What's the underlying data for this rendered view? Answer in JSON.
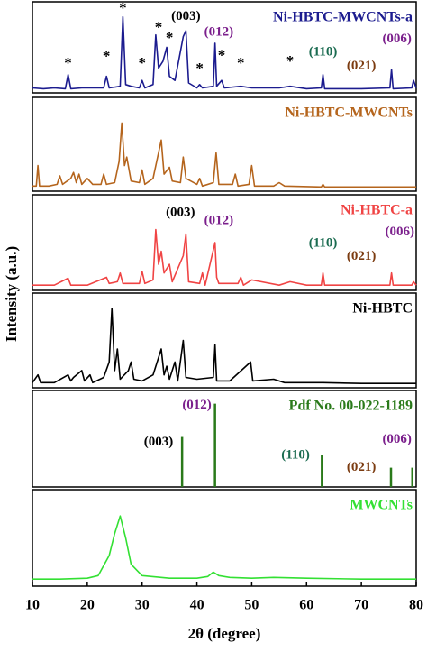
{
  "chart_data": [
    {
      "type": "line",
      "label": "Ni-HBTC-MWCNTs-a",
      "color": "#1c1c8f",
      "ylabel": "Intensity (a.u.)",
      "ylim": [
        0,
        110
      ],
      "x": [
        10,
        12,
        14,
        16,
        16.5,
        17,
        19,
        21,
        23,
        23.5,
        24,
        26,
        26.5,
        27,
        28,
        29.5,
        30,
        30.5,
        32,
        32.5,
        33,
        33.8,
        34.5,
        35,
        36,
        37.5,
        38,
        38.5,
        40,
        40.5,
        41,
        43,
        43.3,
        43.6,
        44.5,
        45,
        48,
        50,
        55,
        57,
        60,
        62.7,
        63,
        63.3,
        70,
        75.2,
        75.5,
        75.8,
        79.2,
        79.5,
        80
      ],
      "values": [
        6,
        5,
        6,
        5,
        22,
        5,
        6,
        6,
        6,
        20,
        6,
        8,
        92,
        10,
        8,
        6,
        15,
        6,
        10,
        70,
        30,
        38,
        55,
        20,
        15,
        68,
        75,
        12,
        6,
        10,
        6,
        8,
        60,
        8,
        15,
        6,
        8,
        6,
        6,
        8,
        5,
        6,
        22,
        5,
        5,
        6,
        28,
        5,
        6,
        15,
        6
      ],
      "annotations": [
        {
          "text": "*",
          "x": 16.5,
          "y": 35,
          "color": "#000000"
        },
        {
          "text": "*",
          "x": 23.5,
          "y": 43,
          "color": "#000000"
        },
        {
          "text": "*",
          "x": 26.5,
          "y": 101,
          "color": "#000000"
        },
        {
          "text": "*",
          "x": 30,
          "y": 35,
          "color": "#000000"
        },
        {
          "text": "*",
          "x": 33,
          "y": 78,
          "color": "#000000"
        },
        {
          "text": "*",
          "x": 35,
          "y": 65,
          "color": "#000000"
        },
        {
          "text": "*",
          "x": 40.5,
          "y": 28,
          "color": "#000000"
        },
        {
          "text": "*",
          "x": 44.5,
          "y": 44,
          "color": "#000000"
        },
        {
          "text": "*",
          "x": 48,
          "y": 35,
          "color": "#000000"
        },
        {
          "text": "*",
          "x": 57,
          "y": 37,
          "color": "#000000"
        },
        {
          "text": "(003)",
          "x": 38,
          "y": 92,
          "color": "#000000"
        },
        {
          "text": "(012)",
          "x": 44,
          "y": 73,
          "color": "#7b1f8c"
        },
        {
          "text": "(110)",
          "x": 63,
          "y": 49,
          "color": "#1a6b50"
        },
        {
          "text": "(021)",
          "x": 70,
          "y": 32,
          "color": "#7b3b10"
        },
        {
          "text": "(006)",
          "x": 76.5,
          "y": 65,
          "color": "#7b1f8c"
        }
      ]
    },
    {
      "type": "line",
      "label": "Ni-HBTC-MWCNTs",
      "color": "#b5651d",
      "ylim": [
        0,
        110
      ],
      "x": [
        10,
        10.7,
        11,
        11.3,
        13,
        14.5,
        15,
        15.5,
        17,
        17.5,
        18,
        18.5,
        19,
        20,
        21,
        22.5,
        23,
        23.5,
        25,
        25.8,
        26.3,
        26.8,
        27.2,
        28,
        29.5,
        30,
        30.5,
        32,
        33.5,
        34,
        35,
        35.5,
        37,
        37.5,
        38,
        40,
        40.5,
        41,
        43,
        43.5,
        44,
        46.5,
        47,
        47.5,
        49.5,
        50,
        50.5,
        54,
        55,
        56,
        62.7,
        63,
        63.3,
        70,
        80
      ],
      "values": [
        6,
        6,
        30,
        6,
        6,
        8,
        18,
        8,
        15,
        22,
        10,
        20,
        8,
        15,
        8,
        8,
        20,
        8,
        10,
        35,
        80,
        30,
        40,
        12,
        10,
        25,
        8,
        15,
        60,
        20,
        28,
        12,
        10,
        40,
        15,
        8,
        15,
        6,
        10,
        45,
        8,
        8,
        20,
        6,
        8,
        30,
        6,
        6,
        10,
        6,
        5,
        8,
        5,
        5,
        5
      ],
      "annotations": []
    },
    {
      "type": "line",
      "label": "Ni-HBTC-a",
      "color": "#f04444",
      "ylim": [
        0,
        110
      ],
      "x": [
        10,
        14,
        16.5,
        17,
        20,
        23.5,
        24,
        25.5,
        26,
        26.5,
        29.5,
        30,
        30.5,
        32,
        32.5,
        33,
        33.5,
        34,
        35,
        35.5,
        37.5,
        38,
        38.5,
        40.5,
        41,
        41.5,
        43.3,
        43.6,
        44,
        47.5,
        48,
        48.5,
        50,
        55,
        57,
        60,
        62.7,
        63,
        63.3,
        70,
        75.2,
        75.5,
        75.8,
        79.2,
        79.5,
        80
      ],
      "values": [
        6,
        6,
        14,
        6,
        6,
        15,
        8,
        10,
        20,
        8,
        8,
        22,
        8,
        12,
        70,
        30,
        45,
        20,
        30,
        10,
        40,
        65,
        10,
        8,
        20,
        6,
        55,
        15,
        8,
        8,
        15,
        6,
        12,
        6,
        10,
        6,
        6,
        20,
        6,
        6,
        6,
        20,
        6,
        6,
        10,
        6
      ],
      "annotations": [
        {
          "text": "(003)",
          "x": 37,
          "y": 89,
          "color": "#000000"
        },
        {
          "text": "(012)",
          "x": 44,
          "y": 80,
          "color": "#7b1f8c"
        },
        {
          "text": "(110)",
          "x": 63,
          "y": 54,
          "color": "#1a6b50"
        },
        {
          "text": "(021)",
          "x": 70,
          "y": 39,
          "color": "#7b3b10"
        },
        {
          "text": "(006)",
          "x": 77,
          "y": 67,
          "color": "#7b1f8c"
        }
      ]
    },
    {
      "type": "line",
      "label": "Ni-HBTC",
      "color": "#000000",
      "ylim": [
        0,
        110
      ],
      "x": [
        10,
        11,
        11.5,
        14,
        16.5,
        17,
        17.5,
        19,
        19.5,
        20.5,
        21,
        23,
        24,
        24.5,
        25,
        25.5,
        26,
        27.5,
        28,
        28.5,
        30,
        32,
        33.5,
        34,
        34.5,
        35,
        36,
        36.5,
        37.5,
        38,
        40,
        43,
        43.3,
        43.6,
        46,
        49.8,
        50.2,
        54,
        56,
        63,
        70,
        80
      ],
      "values": [
        6,
        15,
        6,
        6,
        15,
        8,
        12,
        20,
        8,
        15,
        6,
        12,
        30,
        92,
        20,
        45,
        10,
        20,
        30,
        10,
        8,
        15,
        45,
        15,
        25,
        10,
        30,
        8,
        55,
        12,
        10,
        12,
        50,
        8,
        8,
        30,
        8,
        10,
        6,
        6,
        5,
        5
      ],
      "annotations": []
    },
    {
      "type": "stem",
      "label": "Pdf No. 00-022-1189",
      "color": "#2a7a1a",
      "ylim": [
        0,
        110
      ],
      "x": [
        37.3,
        43.3,
        62.8,
        75.4,
        79.3
      ],
      "values": [
        57,
        95,
        36,
        22,
        22
      ],
      "annotations": [
        {
          "text": "(003)",
          "x": 33,
          "y": 51,
          "color": "#000000"
        },
        {
          "text": "(012)",
          "x": 40,
          "y": 93,
          "color": "#7b1f8c"
        },
        {
          "text": "(110)",
          "x": 58,
          "y": 36,
          "color": "#1a6b50"
        },
        {
          "text": "(021)",
          "x": 70,
          "y": 22,
          "color": "#7b3b10"
        },
        {
          "text": "(006)",
          "x": 76.5,
          "y": 54,
          "color": "#7b1f8c"
        }
      ]
    },
    {
      "type": "line",
      "label": "MWCNTs",
      "color": "#33e033",
      "ylim": [
        0,
        110
      ],
      "x": [
        10,
        15,
        20,
        22,
        24,
        25,
        26,
        27,
        28,
        30,
        35,
        40,
        42,
        43,
        44,
        46,
        50,
        54,
        60,
        70,
        80
      ],
      "values": [
        8,
        8,
        9,
        12,
        35,
        60,
        80,
        55,
        25,
        12,
        9,
        9,
        11,
        16,
        12,
        10,
        9,
        10,
        9,
        8,
        8
      ],
      "annotations": [],
      "xlim": [
        10,
        80
      ],
      "xticks": [
        10,
        20,
        30,
        40,
        50,
        60,
        70,
        80
      ],
      "xlabel": "2θ (degree)"
    }
  ]
}
